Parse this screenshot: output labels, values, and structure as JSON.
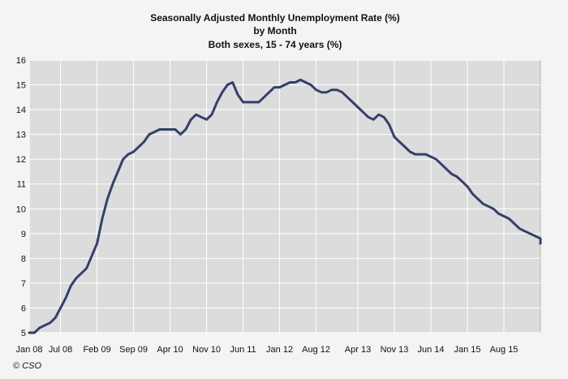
{
  "chart_data": {
    "type": "line",
    "title": [
      "Seasonally Adjusted Monthly Unemployment Rate (%)",
      "by Month",
      "Both sexes, 15 - 74 years (%)"
    ],
    "xlabel": "",
    "ylabel": "",
    "ylim": [
      5,
      16
    ],
    "yticks": [
      5,
      6,
      7,
      8,
      9,
      10,
      11,
      12,
      13,
      14,
      15,
      16
    ],
    "x_range": [
      "2008-01",
      "2016-03"
    ],
    "x_tick_labels": [
      {
        "month": "2008-01",
        "label": "Jan 08"
      },
      {
        "month": "2008-07",
        "label": "Jul 08"
      },
      {
        "month": "2009-02",
        "label": "Feb 09"
      },
      {
        "month": "2009-09",
        "label": "Sep 09"
      },
      {
        "month": "2010-04",
        "label": "Apr 10"
      },
      {
        "month": "2010-11",
        "label": "Nov 10"
      },
      {
        "month": "2011-06",
        "label": "Jun 11"
      },
      {
        "month": "2012-01",
        "label": "Jan 12"
      },
      {
        "month": "2012-08",
        "label": "Aug 12"
      },
      {
        "month": "2013-04",
        "label": "Apr 13"
      },
      {
        "month": "2013-11",
        "label": "Nov 13"
      },
      {
        "month": "2014-06",
        "label": "Jun 14"
      },
      {
        "month": "2015-01",
        "label": "Jan 15"
      },
      {
        "month": "2015-08",
        "label": "Aug 15"
      }
    ],
    "grid": true,
    "line_color": "#34406a",
    "plot_background": "#dcdcdc",
    "series": [
      {
        "points": [
          [
            "2008-01",
            5.0
          ],
          [
            "2008-02",
            5.0
          ],
          [
            "2008-03",
            5.2
          ],
          [
            "2008-04",
            5.3
          ],
          [
            "2008-05",
            5.4
          ],
          [
            "2008-06",
            5.6
          ],
          [
            "2008-07",
            6.0
          ],
          [
            "2008-08",
            6.4
          ],
          [
            "2008-09",
            6.9
          ],
          [
            "2008-10",
            7.2
          ],
          [
            "2008-11",
            7.4
          ],
          [
            "2008-12",
            7.6
          ],
          [
            "2009-01",
            8.1
          ],
          [
            "2009-02",
            8.6
          ],
          [
            "2009-03",
            9.6
          ],
          [
            "2009-04",
            10.4
          ],
          [
            "2009-05",
            11.0
          ],
          [
            "2009-06",
            11.5
          ],
          [
            "2009-07",
            12.0
          ],
          [
            "2009-08",
            12.2
          ],
          [
            "2009-09",
            12.3
          ],
          [
            "2009-10",
            12.5
          ],
          [
            "2009-11",
            12.7
          ],
          [
            "2009-12",
            13.0
          ],
          [
            "2010-01",
            13.1
          ],
          [
            "2010-02",
            13.2
          ],
          [
            "2010-03",
            13.2
          ],
          [
            "2010-04",
            13.2
          ],
          [
            "2010-05",
            13.2
          ],
          [
            "2010-06",
            13.0
          ],
          [
            "2010-07",
            13.2
          ],
          [
            "2010-08",
            13.6
          ],
          [
            "2010-09",
            13.8
          ],
          [
            "2010-10",
            13.7
          ],
          [
            "2010-11",
            13.6
          ],
          [
            "2010-12",
            13.8
          ],
          [
            "2011-01",
            14.3
          ],
          [
            "2011-02",
            14.7
          ],
          [
            "2011-03",
            15.0
          ],
          [
            "2011-04",
            15.1
          ],
          [
            "2011-05",
            14.6
          ],
          [
            "2011-06",
            14.3
          ],
          [
            "2011-07",
            14.3
          ],
          [
            "2011-08",
            14.3
          ],
          [
            "2011-09",
            14.3
          ],
          [
            "2011-10",
            14.5
          ],
          [
            "2011-11",
            14.7
          ],
          [
            "2011-12",
            14.9
          ],
          [
            "2012-01",
            14.9
          ],
          [
            "2012-02",
            15.0
          ],
          [
            "2012-03",
            15.1
          ],
          [
            "2012-04",
            15.1
          ],
          [
            "2012-05",
            15.2
          ],
          [
            "2012-06",
            15.1
          ],
          [
            "2012-07",
            15.0
          ],
          [
            "2012-08",
            14.8
          ],
          [
            "2012-09",
            14.7
          ],
          [
            "2012-10",
            14.7
          ],
          [
            "2012-11",
            14.8
          ],
          [
            "2012-12",
            14.8
          ],
          [
            "2013-01",
            14.7
          ],
          [
            "2013-02",
            14.5
          ],
          [
            "2013-03",
            14.3
          ],
          [
            "2013-04",
            14.1
          ],
          [
            "2013-05",
            13.9
          ],
          [
            "2013-06",
            13.7
          ],
          [
            "2013-07",
            13.6
          ],
          [
            "2013-08",
            13.8
          ],
          [
            "2013-09",
            13.7
          ],
          [
            "2013-10",
            13.4
          ],
          [
            "2013-11",
            12.9
          ],
          [
            "2013-12",
            12.7
          ],
          [
            "2014-01",
            12.5
          ],
          [
            "2014-02",
            12.3
          ],
          [
            "2014-03",
            12.2
          ],
          [
            "2014-04",
            12.2
          ],
          [
            "2014-05",
            12.2
          ],
          [
            "2014-06",
            12.1
          ],
          [
            "2014-07",
            12.0
          ],
          [
            "2014-08",
            11.8
          ],
          [
            "2014-09",
            11.6
          ],
          [
            "2014-10",
            11.4
          ],
          [
            "2014-11",
            11.3
          ],
          [
            "2014-12",
            11.1
          ],
          [
            "2015-01",
            10.9
          ],
          [
            "2015-02",
            10.6
          ],
          [
            "2015-03",
            10.4
          ],
          [
            "2015-04",
            10.2
          ],
          [
            "2015-05",
            10.1
          ],
          [
            "2015-06",
            10.0
          ],
          [
            "2015-07",
            9.8
          ],
          [
            "2015-08",
            9.7
          ],
          [
            "2015-09",
            9.6
          ],
          [
            "2015-10",
            9.4
          ],
          [
            "2015-11",
            9.2
          ],
          [
            "2015-12",
            9.1
          ],
          [
            "2016-01",
            9.0
          ],
          [
            "2016-02",
            8.9
          ],
          [
            "2016-03",
            8.8
          ],
          [
            "2016-04",
            8.8
          ],
          [
            "2016-05",
            8.6
          ]
        ]
      }
    ]
  },
  "credit": "© CSO"
}
